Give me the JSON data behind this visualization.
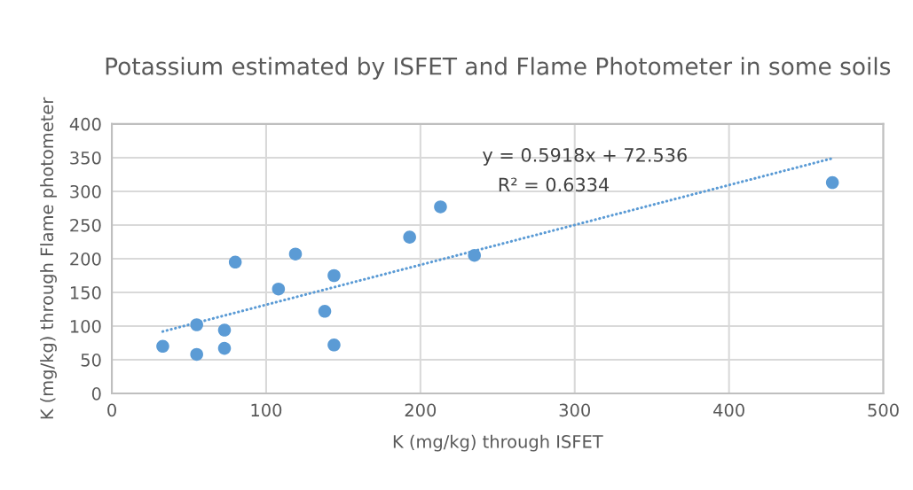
{
  "chart_data": {
    "type": "scatter",
    "title": "Potassium estimated by ISFET and Flame Photometer in some soils",
    "xlabel": "K (mg/kg) through ISFET",
    "ylabel": "K (mg/kg) through Flame photometer",
    "series": [
      {
        "type": "scatter",
        "color": "#5b9bd5",
        "marker": "circle",
        "x": [
          33,
          55,
          55,
          73,
          73,
          80,
          108,
          119,
          138,
          144,
          144,
          193,
          213,
          235,
          467
        ],
        "values": [
          70,
          102,
          58,
          94,
          67,
          195,
          155,
          207,
          122,
          175,
          72,
          232,
          277,
          205,
          313
        ]
      },
      {
        "type": "line",
        "color": "#5b9bd5",
        "line_style": "dotted",
        "marker": "none",
        "x": [
          33,
          467
        ],
        "values": [
          92,
          349
        ]
      }
    ],
    "annotations": [
      "y = 0.5918x + 72.536",
      "R² = 0.6334"
    ],
    "xlim": [
      0,
      500
    ],
    "xticks": [
      0,
      100,
      200,
      300,
      400,
      500
    ],
    "ylim": [
      0,
      400
    ],
    "yticks": [
      0,
      50,
      100,
      150,
      200,
      250,
      300,
      350,
      400
    ],
    "grid": true,
    "legend": false
  }
}
